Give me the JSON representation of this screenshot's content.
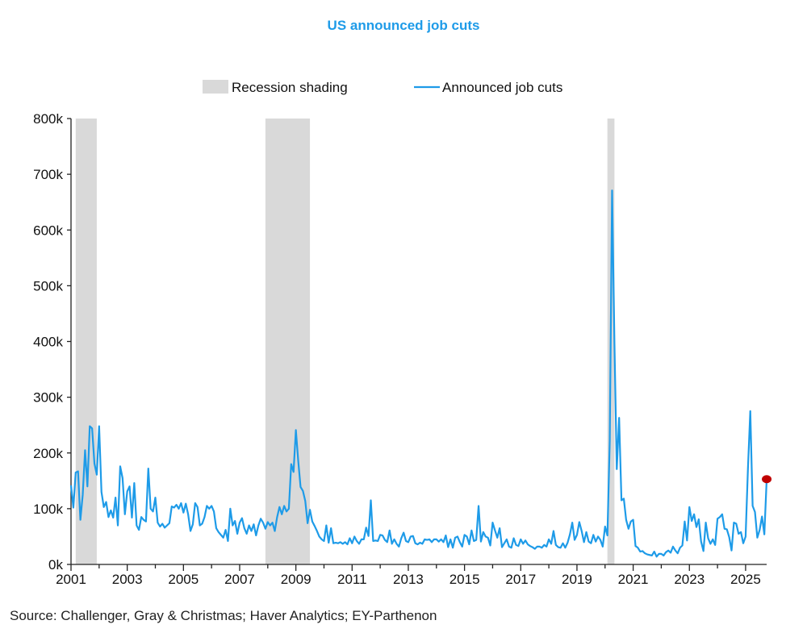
{
  "chart_data": {
    "type": "line",
    "title": "US announced job cuts",
    "source": "Source: Challenger, Gray & Christmas; Haver Analytics; EY-Parthenon",
    "legend": {
      "placement": "top-center",
      "entries": [
        "Recession shading",
        "Announced job cuts"
      ]
    },
    "colors": {
      "line": "#1E9BE8",
      "recession": "#D9D9D9",
      "last_point": "#C00000",
      "title": "#1E9BE8"
    },
    "ylim": [
      0,
      800000
    ],
    "yticks": [
      "0k",
      "100k",
      "200k",
      "300k",
      "400k",
      "500k",
      "600k",
      "700k",
      "800k"
    ],
    "xlim": [
      "2001-01",
      "2025-10"
    ],
    "xticks": [
      "2001",
      "2003",
      "2005",
      "2007",
      "2009",
      "2011",
      "2013",
      "2015",
      "2017",
      "2019",
      "2021",
      "2023",
      "2025"
    ],
    "grid": false,
    "recessions": [
      [
        "2001-03",
        "2001-11"
      ],
      [
        "2007-12",
        "2009-06"
      ],
      [
        "2020-02",
        "2020-04"
      ]
    ],
    "series": [
      {
        "name": "Announced job cuts",
        "start": "2001-01",
        "frequency": "monthly",
        "unit": "thousands",
        "values": [
          142,
          102,
          165,
          167,
          80,
          125,
          205,
          140,
          248,
          244,
          181,
          161,
          248,
          130,
          103,
          112,
          85,
          97,
          84,
          120,
          70,
          176,
          155,
          90,
          131,
          140,
          84,
          146,
          70,
          62,
          85,
          80,
          77,
          172,
          100,
          95,
          120,
          75,
          68,
          73,
          66,
          70,
          74,
          104,
          102,
          107,
          100,
          110,
          93,
          109,
          90,
          60,
          72,
          110,
          103,
          70,
          73,
          85,
          105,
          100,
          105,
          95,
          65,
          58,
          53,
          48,
          62,
          42,
          100,
          70,
          78,
          55,
          75,
          83,
          65,
          55,
          70,
          60,
          72,
          52,
          70,
          82,
          75,
          64,
          76,
          70,
          75,
          60,
          85,
          103,
          90,
          105,
          95,
          100,
          180,
          166,
          241,
          186,
          139,
          132,
          114,
          74,
          98,
          77,
          69,
          60,
          50,
          45,
          42,
          70,
          39,
          65,
          38,
          39,
          38,
          40,
          37,
          40,
          36,
          47,
          38,
          50,
          42,
          37,
          45,
          45,
          66,
          51,
          115,
          42,
          43,
          42,
          53,
          52,
          44,
          40,
          61,
          37,
          45,
          37,
          32,
          47,
          57,
          42,
          40,
          50,
          51,
          38,
          36,
          39,
          37,
          45,
          44,
          45,
          40,
          45,
          45,
          41,
          45,
          40,
          52,
          31,
          45,
          30,
          48,
          50,
          40,
          32,
          53,
          50,
          36,
          61,
          42,
          44,
          105,
          41,
          58,
          50,
          48,
          34,
          75,
          61,
          48,
          65,
          31,
          38,
          45,
          32,
          30,
          47,
          35,
          33,
          45,
          37,
          43,
          36,
          33,
          31,
          28,
          32,
          32,
          30,
          35,
          32,
          45,
          37,
          60,
          35,
          31,
          30,
          38,
          30,
          39,
          54,
          75,
          44,
          53,
          76,
          60,
          40,
          58,
          41,
          38,
          53,
          41,
          50,
          44,
          32,
          68,
          52,
          222,
          671,
          397,
          171,
          263,
          115,
          118,
          80,
          64,
          77,
          80,
          33,
          30,
          23,
          24,
          20,
          18,
          17,
          16,
          23,
          14,
          19,
          19,
          16,
          22,
          25,
          21,
          32,
          25,
          20,
          30,
          34,
          77,
          43,
          103,
          78,
          90,
          67,
          81,
          41,
          24,
          75,
          47,
          37,
          45,
          35,
          82,
          85,
          90,
          64,
          63,
          49,
          25,
          75,
          73,
          55,
          58,
          38,
          50,
          172,
          275,
          105,
          94,
          48,
          62,
          86,
          54,
          153
        ]
      }
    ]
  }
}
